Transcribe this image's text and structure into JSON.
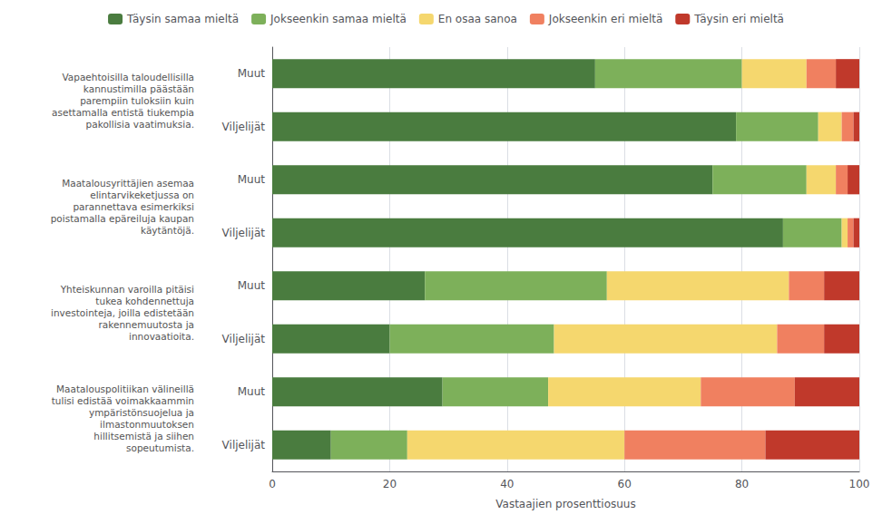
{
  "chart_data": {
    "type": "bar",
    "orientation": "horizontal",
    "stacked": true,
    "categories": [
      "Viljelijät",
      "Muut",
      "Viljelijät",
      "Muut",
      "Viljelijät",
      "Muut",
      "Viljelijät",
      "Muut"
    ],
    "series": [
      {
        "name": "Täysin samaa mieltä",
        "color": "#4a7c3f",
        "values": [
          10,
          29,
          20,
          26,
          87,
          75,
          79,
          55
        ]
      },
      {
        "name": "Jokseenkin samaa mieltä",
        "color": "#7db05a",
        "values": [
          13,
          18,
          28,
          31,
          10,
          16,
          14,
          25
        ]
      },
      {
        "name": "En osaa sanoa",
        "color": "#f5d76e",
        "values": [
          37,
          26,
          38,
          31,
          1,
          5,
          4,
          11
        ]
      },
      {
        "name": "Jokseenkin eri mieltä",
        "color": "#f08060",
        "values": [
          24,
          16,
          8,
          6,
          1,
          2,
          2,
          5
        ]
      },
      {
        "name": "Täysin eri mieltä",
        "color": "#c0392b",
        "values": [
          16,
          11,
          6,
          6,
          1,
          2,
          1,
          4
        ]
      }
    ],
    "annotations": [
      "Maatalouspolitiikan välineillä\ntulisi edistää voimakkaammin\nympäristönsuojelua ja\nilmastonmuutoksen\nhillitsemistä ja siihen\nsopeutumista.",
      "Yhteiskunnan varoilla pitäisi\ntukea kohdennettuja\ninvestointeja, joilla edistetään\nrakennemuutosta ja\ninnovaatioita.",
      "Maatalousyrittäjien asemaa\nelintarvikeketjussa on\nparannettava esimerkiksi\npoistamalla epäreiluja kaupan\nkäytäntöjä.",
      "Vapaehtoisilla taloudellisilla\nkannustimilla päästään\nparempiin tuloksiin kuin\nasettamalla entistä tiukempia\npakollisia vaatimuksia."
    ],
    "xlabel": "Vastaajien prosenttiosuus",
    "xlim": [
      0,
      100
    ],
    "xticks": [
      0,
      20,
      40,
      60,
      80,
      100
    ],
    "grid": true,
    "legend": "top"
  }
}
